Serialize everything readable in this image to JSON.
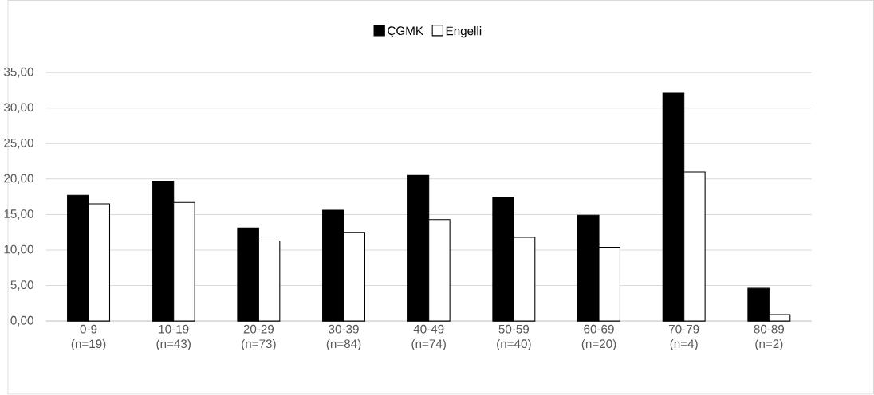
{
  "chart_data": {
    "type": "bar",
    "categories": [
      "0-9 (n=19)",
      "10-19 (n=43)",
      "20-29 (n=73)",
      "30-39 (n=84)",
      "40-49 (n=74)",
      "50-59 (n=40)",
      "60-69 (n=20)",
      "70-79 (n=4)",
      "80-89 (n=2)"
    ],
    "series": [
      {
        "name": "ÇGMK",
        "color": "#000000",
        "values": [
          17.7,
          19.7,
          13.1,
          15.6,
          20.5,
          17.4,
          14.9,
          32.1,
          4.6
        ]
      },
      {
        "name": "Engelli",
        "color": "#ffffff",
        "values": [
          16.5,
          16.7,
          11.3,
          12.5,
          14.3,
          11.8,
          10.4,
          21.0,
          0.9
        ]
      }
    ],
    "ylim": [
      0,
      35
    ],
    "yticks": [
      {
        "value": 0,
        "label": "0,00"
      },
      {
        "value": 5,
        "label": "5,00"
      },
      {
        "value": 10,
        "label": "10,00"
      },
      {
        "value": 15,
        "label": "15,00"
      },
      {
        "value": 20,
        "label": "20,00"
      },
      {
        "value": 25,
        "label": "25,00"
      },
      {
        "value": 30,
        "label": "30,00"
      },
      {
        "value": 35,
        "label": "35,00"
      }
    ],
    "grid": "y",
    "legend": "top"
  }
}
